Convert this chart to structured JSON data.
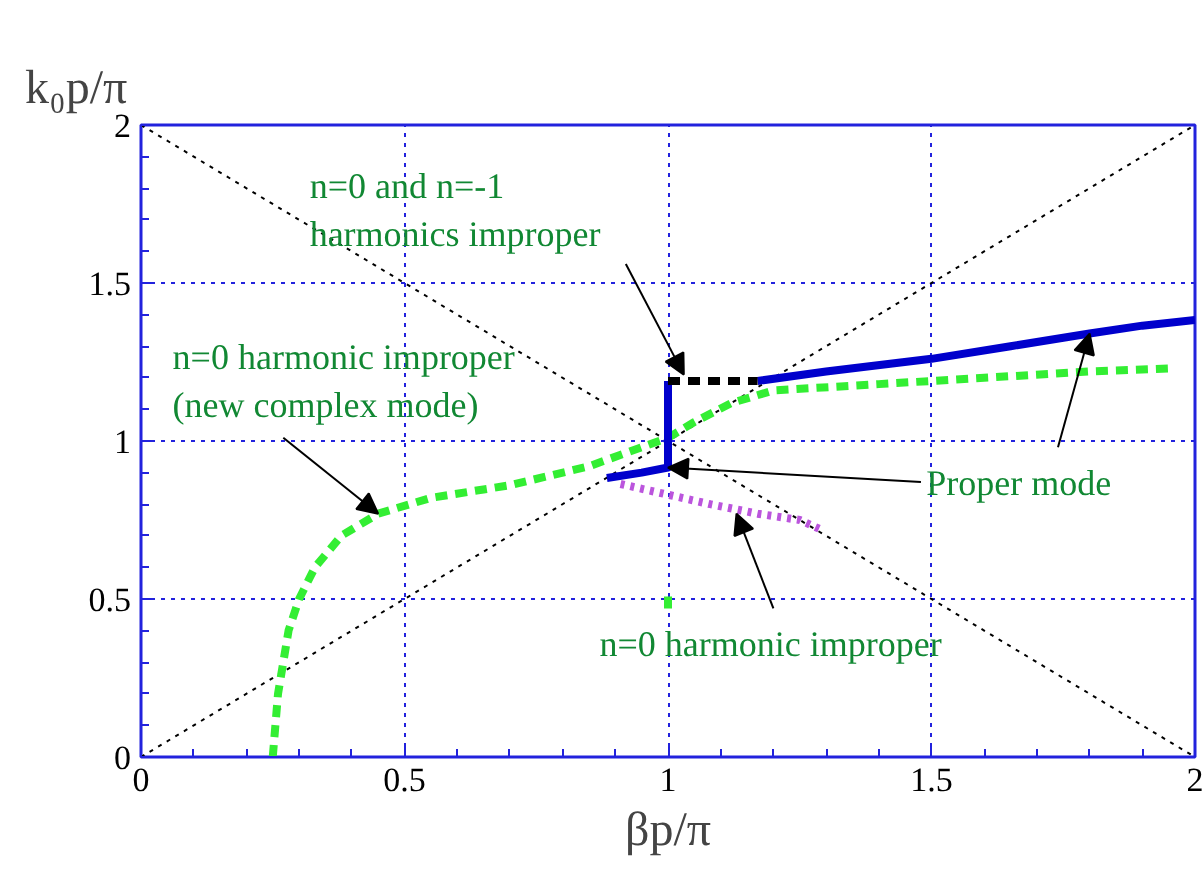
{
  "chart_data": {
    "type": "line",
    "xlabel": "βp/π",
    "ylabel": "k₀p/π",
    "xlim": [
      0,
      2
    ],
    "ylim": [
      0,
      2
    ],
    "xticks": [
      0,
      0.5,
      1,
      1.5,
      2
    ],
    "yticks": [
      0,
      0.5,
      1,
      1.5,
      2
    ],
    "grid": true,
    "marker": "none",
    "series": [
      {
        "color": "#000000",
        "line_style": "dotted",
        "x": [
          0,
          2
        ],
        "values": [
          0,
          2
        ]
      },
      {
        "color": "#000000",
        "line_style": "dotted",
        "x": [
          0,
          2
        ],
        "values": [
          2,
          0
        ]
      },
      {
        "color": "#33ee33",
        "line_style": "dashed",
        "x": [
          0.25,
          0.26,
          0.28,
          0.3,
          0.33,
          0.38,
          0.45,
          0.55,
          0.7,
          0.85,
          0.95,
          1.0,
          1.05,
          1.12,
          1.2,
          1.4,
          1.6,
          1.8,
          1.96,
          null,
          1.0,
          1.0
        ],
        "values": [
          0,
          0.2,
          0.4,
          0.5,
          0.6,
          0.7,
          0.77,
          0.82,
          0.86,
          0.92,
          0.98,
          1.01,
          1.06,
          1.12,
          1.16,
          1.18,
          1.2,
          1.22,
          1.23,
          null,
          0.47,
          0.52
        ]
      },
      {
        "color": "#0000cc",
        "line_style": "solid",
        "x": [
          0.884,
          0.95,
          1.0,
          1.0,
          null,
          1.17,
          1.3,
          1.5,
          1.65,
          1.8,
          1.9,
          2.0
        ],
        "values": [
          0.883,
          0.9,
          0.916,
          1.19,
          null,
          1.19,
          1.22,
          1.26,
          1.3,
          1.34,
          1.365,
          1.383
        ]
      },
      {
        "color": "#000000",
        "line_style": "dashed",
        "x": [
          1.0,
          1.17
        ],
        "values": [
          1.19,
          1.19
        ]
      },
      {
        "color": "#bb55dd",
        "line_style": "dotted",
        "x": [
          0.91,
          1.0,
          1.08,
          1.17,
          1.25,
          1.29
        ],
        "values": [
          0.864,
          0.83,
          0.8,
          0.77,
          0.75,
          0.72
        ]
      }
    ],
    "annotations": [
      {
        "text": "n=0 and n=-1\nharmonics improper",
        "x": 1.03,
        "y": 1.21
      },
      {
        "text": "n=0 harmonic improper\n(new complex mode)",
        "x": 0.45,
        "y": 0.77
      },
      {
        "text": "Proper mode",
        "x": 1.0,
        "y": 0.916
      },
      {
        "text": "n=0 harmonic improper",
        "x": 1.13,
        "y": 0.77
      }
    ]
  }
}
